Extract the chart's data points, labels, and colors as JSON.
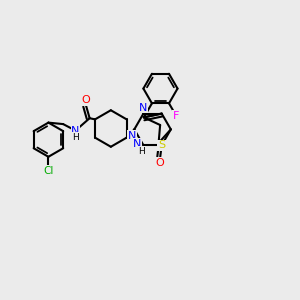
{
  "background_color": "#ebebeb",
  "atom_colors": {
    "N": "#0000ff",
    "O": "#ff0000",
    "S": "#cccc00",
    "Cl": "#00aa00",
    "F": "#ff00ff",
    "C": "#000000",
    "H": "#000000"
  },
  "bond_color": "#000000",
  "bond_width": 1.5
}
